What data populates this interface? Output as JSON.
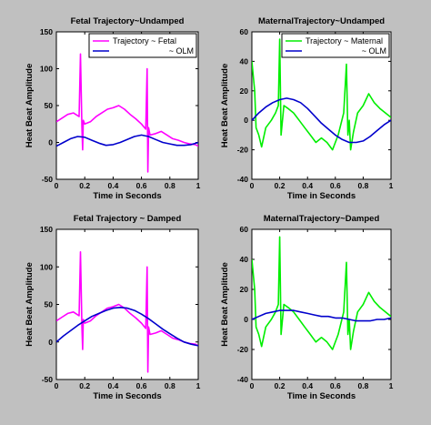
{
  "chart_data": [
    {
      "type": "line",
      "title": "Fetal Trajectory~Undamped",
      "xlabel": "Time in Seconds",
      "ylabel": "Heat Beat Amplitude",
      "xlim": [
        0,
        1
      ],
      "ylim": [
        -50,
        150
      ],
      "xticks": [
        "0",
        "0.2",
        "0.4",
        "0.6",
        "0.8",
        "1"
      ],
      "yticks": [
        "150",
        "100",
        "50",
        "0",
        "-50"
      ],
      "legend": {
        "position": "top-right",
        "entries": [
          "Trajectory ~ Fetal",
          "~ OLM"
        ]
      },
      "series": [
        {
          "name": "Trajectory ~ Fetal",
          "color": "#ff00ff",
          "x": [
            0,
            0.04,
            0.08,
            0.12,
            0.16,
            0.17,
            0.18,
            0.185,
            0.19,
            0.2,
            0.24,
            0.28,
            0.32,
            0.36,
            0.4,
            0.44,
            0.48,
            0.52,
            0.56,
            0.6,
            0.63,
            0.64,
            0.645,
            0.65,
            0.66,
            0.7,
            0.74,
            0.78,
            0.82,
            0.86,
            0.9,
            0.94,
            0.98,
            1.0
          ],
          "y": [
            28,
            33,
            38,
            40,
            35,
            120,
            20,
            -10,
            30,
            25,
            28,
            35,
            40,
            45,
            47,
            50,
            45,
            38,
            32,
            25,
            18,
            100,
            -40,
            20,
            10,
            12,
            15,
            10,
            5,
            3,
            0,
            -2,
            -3,
            -5
          ]
        },
        {
          "name": "~ OLM",
          "color": "#0000cc",
          "x": [
            0,
            0.05,
            0.1,
            0.15,
            0.2,
            0.25,
            0.3,
            0.35,
            0.4,
            0.45,
            0.5,
            0.55,
            0.6,
            0.65,
            0.7,
            0.75,
            0.8,
            0.85,
            0.9,
            0.95,
            1.0
          ],
          "y": [
            -5,
            0,
            5,
            8,
            7,
            3,
            -1,
            -4,
            -3,
            0,
            4,
            8,
            10,
            8,
            4,
            0,
            -2,
            -4,
            -4,
            -3,
            0
          ]
        }
      ]
    },
    {
      "type": "line",
      "title": "MaternalTrajectory~Undamped",
      "xlabel": "Time in Seconds",
      "ylabel": "Heat Beat Amplitude",
      "xlim": [
        0,
        1
      ],
      "ylim": [
        -40,
        60
      ],
      "xticks": [
        "0",
        "0.2",
        "0.4",
        "0.6",
        "0.8",
        "1"
      ],
      "yticks": [
        "60",
        "40",
        "20",
        "0",
        "-20",
        "-40"
      ],
      "legend": {
        "position": "top-right",
        "entries": [
          "Trajectory ~ Maternal",
          "~ OLM"
        ]
      },
      "series": [
        {
          "name": "Trajectory ~ Maternal",
          "color": "#00ee00",
          "x": [
            0,
            0.02,
            0.03,
            0.05,
            0.07,
            0.1,
            0.14,
            0.17,
            0.19,
            0.2,
            0.21,
            0.23,
            0.26,
            0.3,
            0.34,
            0.38,
            0.42,
            0.46,
            0.5,
            0.54,
            0.58,
            0.62,
            0.66,
            0.68,
            0.69,
            0.7,
            0.71,
            0.73,
            0.76,
            0.8,
            0.84,
            0.88,
            0.92,
            0.96,
            1.0
          ],
          "y": [
            40,
            20,
            -5,
            -10,
            -18,
            -5,
            0,
            5,
            10,
            55,
            -10,
            10,
            8,
            5,
            0,
            -5,
            -10,
            -15,
            -12,
            -15,
            -20,
            -10,
            5,
            38,
            -10,
            0,
            -20,
            -8,
            5,
            10,
            18,
            12,
            8,
            5,
            2
          ]
        },
        {
          "name": "~ OLM",
          "color": "#0000cc",
          "x": [
            0,
            0.05,
            0.1,
            0.15,
            0.2,
            0.25,
            0.3,
            0.35,
            0.4,
            0.45,
            0.5,
            0.55,
            0.6,
            0.65,
            0.7,
            0.75,
            0.8,
            0.85,
            0.9,
            0.95,
            1.0
          ],
          "y": [
            0,
            5,
            9,
            12,
            14,
            15,
            14,
            12,
            8,
            3,
            -2,
            -6,
            -10,
            -13,
            -15,
            -15,
            -14,
            -11,
            -7,
            -3,
            0
          ]
        }
      ]
    },
    {
      "type": "line",
      "title": "Fetal Trajectory ~ Damped",
      "xlabel": "Time in Seconds",
      "ylabel": "Heat Beat Amplitude",
      "xlim": [
        0,
        1
      ],
      "ylim": [
        -50,
        150
      ],
      "xticks": [
        "0",
        "0.2",
        "0.4",
        "0.6",
        "0.8",
        "1"
      ],
      "yticks": [
        "150",
        "100",
        "50",
        "0",
        "-50"
      ],
      "series": [
        {
          "name": "",
          "color": "#ff00ff",
          "x": [
            0,
            0.04,
            0.08,
            0.12,
            0.16,
            0.17,
            0.18,
            0.185,
            0.19,
            0.2,
            0.24,
            0.28,
            0.32,
            0.36,
            0.4,
            0.44,
            0.48,
            0.52,
            0.56,
            0.6,
            0.63,
            0.64,
            0.645,
            0.65,
            0.66,
            0.7,
            0.74,
            0.78,
            0.82,
            0.86,
            0.9,
            0.94,
            0.98,
            1.0
          ],
          "y": [
            28,
            33,
            38,
            40,
            35,
            120,
            20,
            -10,
            30,
            25,
            28,
            35,
            40,
            45,
            47,
            50,
            45,
            38,
            32,
            25,
            18,
            100,
            -40,
            20,
            10,
            12,
            15,
            10,
            5,
            3,
            0,
            -2,
            -3,
            -5
          ]
        },
        {
          "name": "",
          "color": "#0000cc",
          "x": [
            0,
            0.05,
            0.1,
            0.15,
            0.2,
            0.25,
            0.3,
            0.35,
            0.4,
            0.45,
            0.5,
            0.55,
            0.6,
            0.65,
            0.7,
            0.75,
            0.8,
            0.85,
            0.9,
            0.95,
            1.0
          ],
          "y": [
            0,
            8,
            15,
            22,
            28,
            34,
            38,
            42,
            45,
            46,
            45,
            42,
            37,
            31,
            24,
            17,
            11,
            5,
            0,
            -3,
            -5
          ]
        }
      ]
    },
    {
      "type": "line",
      "title": "MaternalTrajectory~Damped",
      "xlabel": "Time in Seconds",
      "ylabel": "Heat Beat Amplitude",
      "xlim": [
        0,
        1
      ],
      "ylim": [
        -40,
        60
      ],
      "xticks": [
        "0",
        "0.2",
        "0.4",
        "0.6",
        "0.8",
        "1"
      ],
      "yticks": [
        "60",
        "40",
        "20",
        "0",
        "-20",
        "-40"
      ],
      "series": [
        {
          "name": "",
          "color": "#00ee00",
          "x": [
            0,
            0.02,
            0.03,
            0.05,
            0.07,
            0.1,
            0.14,
            0.17,
            0.19,
            0.2,
            0.21,
            0.23,
            0.26,
            0.3,
            0.34,
            0.38,
            0.42,
            0.46,
            0.5,
            0.54,
            0.58,
            0.62,
            0.66,
            0.68,
            0.69,
            0.7,
            0.71,
            0.73,
            0.76,
            0.8,
            0.84,
            0.88,
            0.92,
            0.96,
            1.0
          ],
          "y": [
            40,
            20,
            -5,
            -10,
            -18,
            -5,
            0,
            5,
            10,
            55,
            -10,
            10,
            8,
            5,
            0,
            -5,
            -10,
            -15,
            -12,
            -15,
            -20,
            -10,
            5,
            38,
            -10,
            0,
            -20,
            -8,
            5,
            10,
            18,
            12,
            8,
            5,
            2
          ]
        },
        {
          "name": "",
          "color": "#0000cc",
          "x": [
            0,
            0.05,
            0.1,
            0.15,
            0.2,
            0.25,
            0.3,
            0.35,
            0.4,
            0.45,
            0.5,
            0.55,
            0.6,
            0.65,
            0.7,
            0.75,
            0.8,
            0.85,
            0.9,
            0.95,
            1.0
          ],
          "y": [
            0,
            2,
            4,
            5,
            6,
            6,
            6,
            5,
            4,
            3,
            2,
            2,
            1,
            1,
            0,
            -1,
            -1,
            -1,
            0,
            0,
            1
          ]
        }
      ]
    }
  ]
}
